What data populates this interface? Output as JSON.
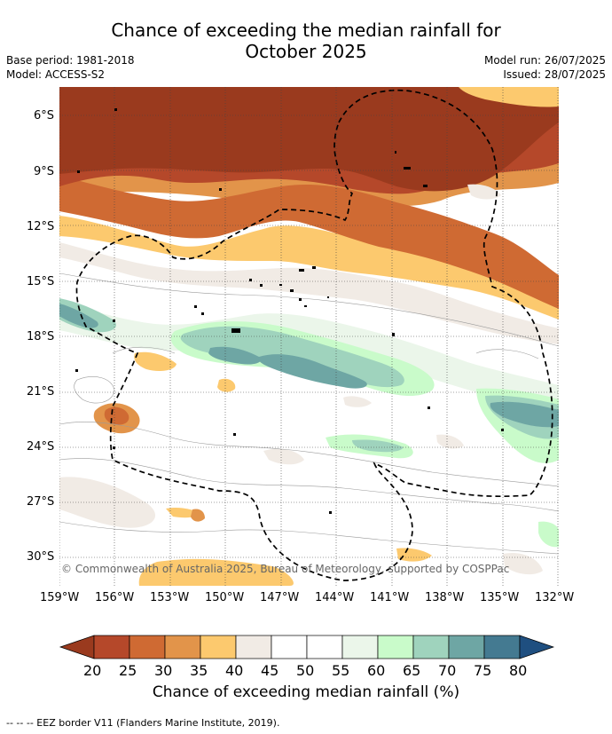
{
  "header": {
    "title_line1": "Chance of exceeding the median rainfall for",
    "title_line2": "October 2025",
    "base_period": "Base period: 1981-2018",
    "model": "Model: ACCESS-S2",
    "model_run": "Model run: 26/07/2025",
    "issued": "Issued: 28/07/2025"
  },
  "map": {
    "copyright": "© Commonwealth of Australia 2025, Bureau of Meteorology, supported by COSPPac",
    "lat_labels": [
      "6°S",
      "9°S",
      "12°S",
      "15°S",
      "18°S",
      "21°S",
      "24°S",
      "27°S",
      "30°S"
    ],
    "lon_labels": [
      "159°W",
      "156°W",
      "153°W",
      "150°W",
      "147°W",
      "144°W",
      "141°W",
      "138°W",
      "135°W",
      "132°W"
    ]
  },
  "colorbar": {
    "ticks": [
      "20",
      "25",
      "30",
      "35",
      "40",
      "45",
      "50",
      "55",
      "60",
      "65",
      "70",
      "75",
      "80"
    ],
    "colors": [
      "#9a3a1e",
      "#b5482a",
      "#cf6a33",
      "#e2944a",
      "#fcc96e",
      "#f1ebe5",
      "#ffffff",
      "#ffffff",
      "#ebf6ea",
      "#c9fbca",
      "#9fd3bd",
      "#6ea6a4",
      "#447a91",
      "#1f4f80"
    ],
    "label": "Chance of exceeding median rainfall (%)"
  },
  "footer": "--  --  -- EEZ border V11 (Flanders Marine Institute, 2019)."
}
